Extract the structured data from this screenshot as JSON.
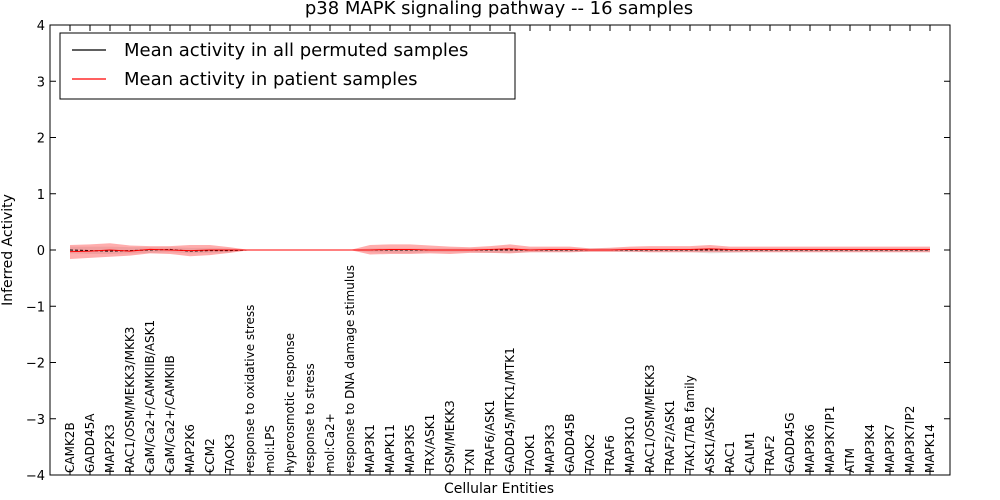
{
  "chart_data": {
    "type": "line",
    "title": "p38 MAPK signaling pathway -- 16 samples",
    "xlabel": "Cellular Entities",
    "ylabel": "Inferred Activity",
    "ylim": [
      -4,
      4
    ],
    "yticks": [
      -4,
      -3,
      -2,
      -1,
      0,
      1,
      2,
      3,
      4
    ],
    "ytick_labels": [
      "−4",
      "−3",
      "−2",
      "−1",
      "0",
      "1",
      "2",
      "3",
      "4"
    ],
    "legend_position": "top-left",
    "categories": [
      "CAMK2B",
      "GADD45A",
      "MAP2K3",
      "RAC1/OSM/MEKK3/MKK3",
      "CaM/Ca2+/CAMKIIB/ASK1",
      "CaM/Ca2+/CAMKIIB",
      "MAP2K6",
      "CCM2",
      "TAOK3",
      "response to oxidative stress",
      "mol:LPS",
      "hyperosmotic response",
      "response to stress",
      "mol:Ca2+",
      "response to DNA damage stimulus",
      "MAP3K1",
      "MAPK11",
      "MAP3K5",
      "TRX/ASK1",
      "OSM/MEKK3",
      "TXN",
      "TRAF6/ASK1",
      "GADD45/MTK1/MTK1",
      "TAOK1",
      "MAP3K3",
      "GADD45B",
      "TAOK2",
      "TRAF6",
      "MAP3K10",
      "RAC1/OSM/MEKK3",
      "TRAF2/ASK1",
      "TAK1/TAB family",
      "ASK1/ASK2",
      "RAC1",
      "CALM1",
      "TRAF2",
      "GADD45G",
      "MAP3K6",
      "MAP3K7IP1",
      "ATM",
      "MAP3K4",
      "MAP3K7",
      "MAP3K7IP2",
      "MAPK14"
    ],
    "series": [
      {
        "name": "Mean activity in all permuted samples",
        "color": "#000000",
        "values": [
          0.0,
          -0.01,
          -0.02,
          -0.01,
          0.0,
          0.01,
          -0.02,
          -0.01,
          -0.01,
          0,
          0,
          0,
          0,
          0,
          0,
          0.0,
          0.0,
          0.0,
          0.0,
          0.0,
          0.0,
          0.0,
          0.0,
          0.0,
          0.0,
          0.0,
          0.0,
          0.0,
          0.0,
          0.0,
          0.0,
          0.0,
          0.0,
          0.0,
          0.0,
          0.0,
          0.0,
          0.0,
          0.0,
          0.0,
          0.0,
          0.0,
          0.0,
          0.0
        ],
        "band_upper": [
          0.06,
          0.06,
          0.06,
          0.05,
          0.05,
          0.05,
          0.04,
          0.04,
          0.03,
          0,
          0,
          0,
          0,
          0,
          0,
          0.03,
          0.03,
          0.03,
          0.03,
          0.03,
          0.03,
          0.03,
          0.03,
          0.03,
          0.03,
          0.03,
          0.03,
          0.03,
          0.03,
          0.03,
          0.03,
          0.03,
          0.03,
          0.03,
          0.03,
          0.03,
          0.03,
          0.03,
          0.03,
          0.03,
          0.03,
          0.03,
          0.03,
          0.03
        ],
        "band_lower": [
          -0.06,
          -0.07,
          -0.07,
          -0.06,
          -0.05,
          -0.04,
          -0.06,
          -0.05,
          -0.04,
          0,
          0,
          0,
          0,
          0,
          0,
          -0.04,
          -0.05,
          -0.05,
          -0.04,
          -0.04,
          -0.04,
          -0.05,
          -0.05,
          -0.04,
          -0.04,
          -0.04,
          -0.03,
          -0.03,
          -0.04,
          -0.04,
          -0.04,
          -0.04,
          -0.06,
          -0.05,
          -0.04,
          -0.04,
          -0.04,
          -0.04,
          -0.04,
          -0.04,
          -0.04,
          -0.04,
          -0.04,
          -0.04
        ]
      },
      {
        "name": "Mean activity in patient samples",
        "color": "#ff0000",
        "values": [
          -0.03,
          -0.02,
          0.0,
          -0.02,
          0.01,
          0.0,
          -0.01,
          0.0,
          0.0,
          0,
          0,
          0,
          0,
          0,
          0,
          0.0,
          0.01,
          0.01,
          0.0,
          0.0,
          0.0,
          0.01,
          0.02,
          0.0,
          0.01,
          0.01,
          0.0,
          0.0,
          0.01,
          0.01,
          0.01,
          0.01,
          0.02,
          0.01,
          0.01,
          0.01,
          0.01,
          0.01,
          0.01,
          0.01,
          0.01,
          0.01,
          0.01,
          0.01
        ],
        "band_upper": [
          0.09,
          0.1,
          0.12,
          0.08,
          0.07,
          0.07,
          0.09,
          0.09,
          0.05,
          0,
          0,
          0,
          0,
          0,
          0,
          0.09,
          0.1,
          0.1,
          0.08,
          0.06,
          0.05,
          0.07,
          0.1,
          0.06,
          0.06,
          0.06,
          0.03,
          0.04,
          0.06,
          0.07,
          0.07,
          0.07,
          0.09,
          0.06,
          0.06,
          0.06,
          0.06,
          0.06,
          0.06,
          0.06,
          0.06,
          0.06,
          0.06,
          0.06
        ],
        "band_lower": [
          -0.16,
          -0.14,
          -0.12,
          -0.1,
          -0.06,
          -0.07,
          -0.11,
          -0.09,
          -0.05,
          0,
          0,
          0,
          0,
          0,
          0,
          -0.08,
          -0.07,
          -0.07,
          -0.06,
          -0.07,
          -0.05,
          -0.05,
          -0.06,
          -0.04,
          -0.04,
          -0.04,
          -0.03,
          -0.03,
          -0.03,
          -0.04,
          -0.04,
          -0.04,
          -0.04,
          -0.04,
          -0.04,
          -0.04,
          -0.04,
          -0.04,
          -0.04,
          -0.04,
          -0.04,
          -0.04,
          -0.04,
          -0.04
        ]
      }
    ]
  }
}
